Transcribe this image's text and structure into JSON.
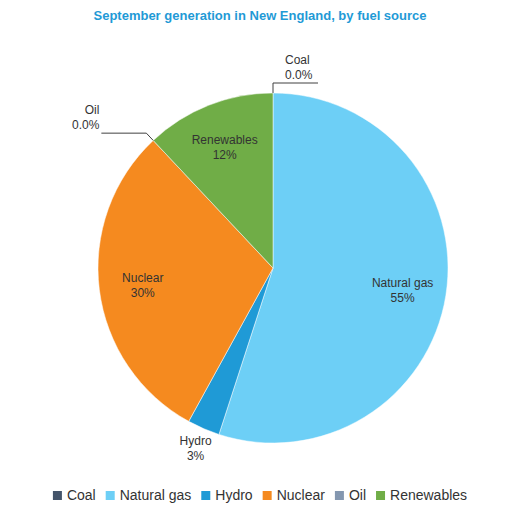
{
  "chart_data": {
    "type": "pie",
    "title": "September generation in New England, by fuel source",
    "categories": [
      "Coal",
      "Natural gas",
      "Hydro",
      "Nuclear",
      "Oil",
      "Renewables"
    ],
    "values": [
      0,
      55,
      3,
      30,
      0,
      12
    ],
    "value_labels": [
      "0.0%",
      "55%",
      "3%",
      "30%",
      "0.0%",
      "12%"
    ],
    "colors": [
      "#44546a",
      "#6dcff6",
      "#1f9ad6",
      "#f58a1f",
      "#8497b0",
      "#70ad47"
    ],
    "data_labels": true,
    "legend": "bottom"
  }
}
